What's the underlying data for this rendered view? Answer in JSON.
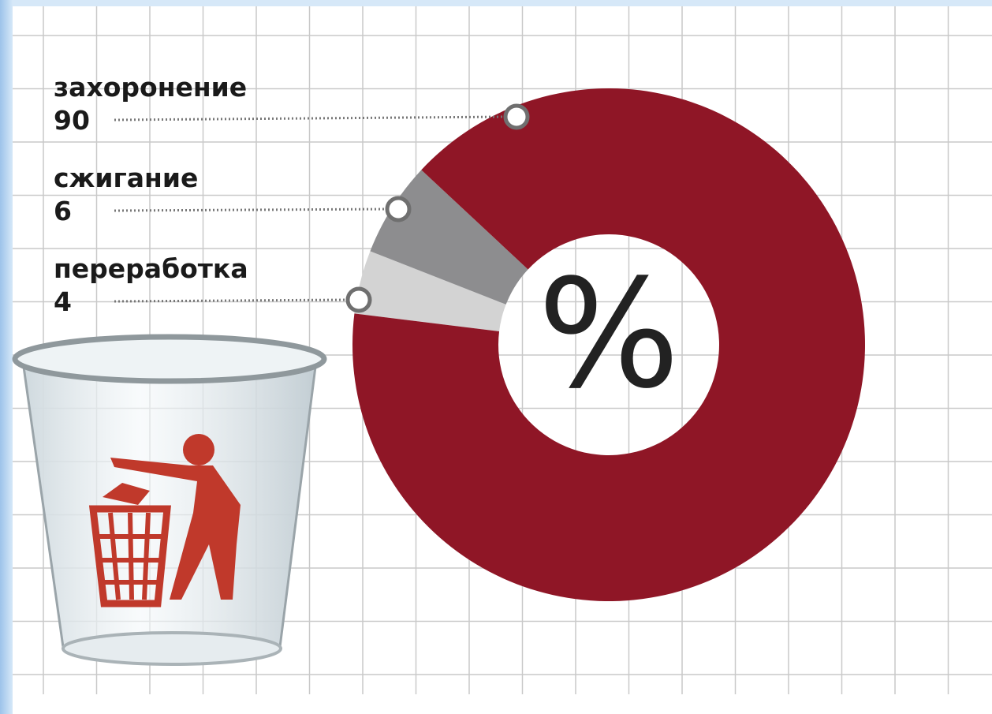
{
  "chart_data": {
    "type": "donut",
    "categories": [
      "захоронение",
      "сжигание",
      "переработка"
    ],
    "values": [
      90,
      6,
      4
    ],
    "colors": [
      "#8f1626",
      "#8d8d8f",
      "#d3d3d3"
    ],
    "center_label": "%"
  }
}
